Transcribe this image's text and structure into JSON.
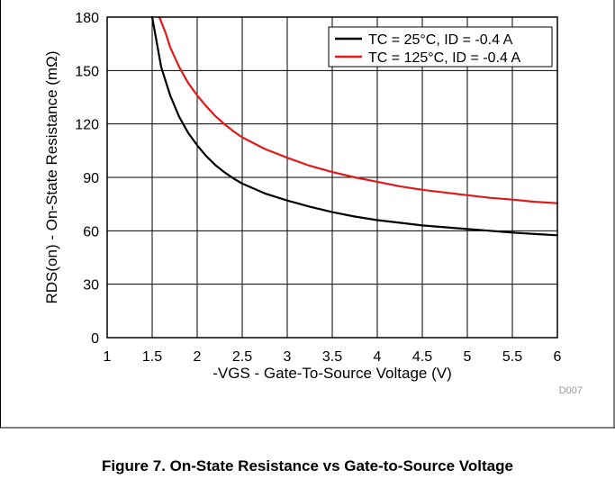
{
  "caption": "Figure 7. On-State Resistance vs Gate-to-Source Voltage",
  "chart_data": {
    "type": "line",
    "xlabel": "-VGS - Gate-To-Source Voltage (V)",
    "ylabel": "RDS(on) - On-State Resistance (mΩ)",
    "xlim": [
      1,
      6
    ],
    "ylim": [
      0,
      180
    ],
    "x_ticks": [
      "1",
      "1.5",
      "2",
      "2.5",
      "3",
      "3.5",
      "4",
      "4.5",
      "5",
      "5.5",
      "6"
    ],
    "y_ticks": [
      "0",
      "30",
      "60",
      "90",
      "120",
      "150",
      "180"
    ],
    "grid": true,
    "legend_position": "top-right",
    "code": "D007",
    "series": [
      {
        "name": "TC = 25°C, ID = -0.4 A",
        "color": "#000000",
        "x": [
          1.5,
          1.55,
          1.6,
          1.7,
          1.8,
          1.9,
          2.0,
          2.1,
          2.2,
          2.3,
          2.4,
          2.5,
          2.75,
          3.0,
          3.25,
          3.5,
          3.75,
          4.0,
          4.25,
          4.5,
          4.75,
          5.0,
          5.25,
          5.5,
          5.75,
          6.0
        ],
        "y": [
          180,
          166,
          152,
          136,
          124,
          115,
          108,
          102,
          97,
          93,
          89.5,
          86.5,
          81,
          77,
          73.5,
          70.5,
          68,
          66,
          64.5,
          63,
          62,
          61,
          60,
          59,
          58.2,
          57.5
        ]
      },
      {
        "name": "TC = 125°C, ID = -0.4 A",
        "color": "#e0191b",
        "x": [
          1.58,
          1.65,
          1.7,
          1.8,
          1.9,
          2.0,
          2.1,
          2.2,
          2.3,
          2.4,
          2.5,
          2.75,
          3.0,
          3.25,
          3.5,
          3.75,
          4.0,
          4.25,
          4.5,
          4.75,
          5.0,
          5.25,
          5.5,
          5.75,
          6.0
        ],
        "y": [
          180,
          171,
          163,
          152,
          143,
          136,
          130,
          124.5,
          120,
          116,
          112.5,
          106,
          101,
          96.5,
          93,
          90,
          87.5,
          85,
          83,
          81.5,
          80,
          78.5,
          77.5,
          76.3,
          75.5
        ]
      }
    ]
  }
}
